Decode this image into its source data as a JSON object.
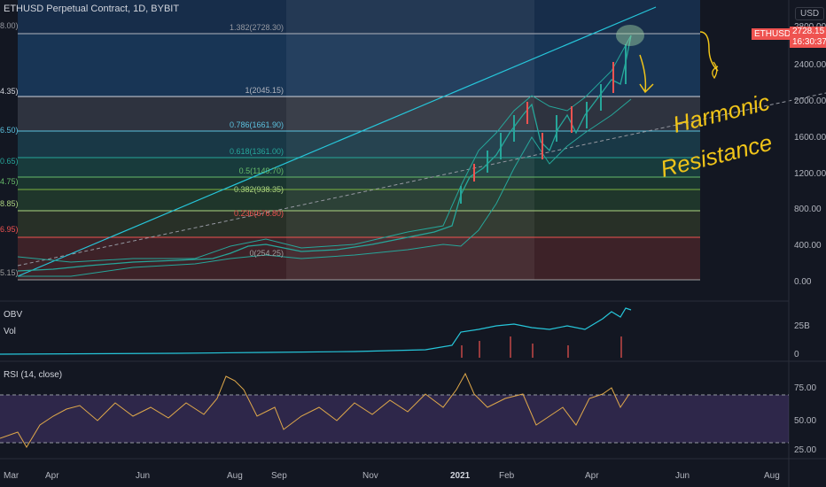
{
  "header": {
    "symbol_title": "ETHUSD Perpetual Contract, 1D, BYBIT",
    "currency_button": "USD",
    "price_flag": "ETHUSD",
    "price_value": "2728.15",
    "countdown": "16:30:37"
  },
  "price_axis": {
    "ticks": [
      "2800.00",
      "2400.00",
      "2000.00",
      "1600.00",
      "1200.00",
      "800.00",
      "400.00",
      "0.00"
    ]
  },
  "fib_levels": [
    {
      "label": "1.382(2728.30)",
      "left": "8.00)",
      "color": "#5b9bd5"
    },
    {
      "label": "1(2045.15)",
      "left": "4.35)",
      "color": "#b2b5be"
    },
    {
      "label": "0.786(1661.90)",
      "left": "6.50)",
      "color": "#5bc0de"
    },
    {
      "label": "0.618(1361.00)",
      "left": "0.65)",
      "color": "#26a69a"
    },
    {
      "label": "0.5(1149.70)",
      "left": "4.75)",
      "color": "#66bb6a"
    },
    {
      "label": "0.382(938.35)",
      "left": "8.85)",
      "color": "#7cb342"
    },
    {
      "label": "0.236(676.80)",
      "left": "6.95)",
      "color": "#ef5350"
    },
    {
      "label": "0(254.25)",
      "left": "5.15)",
      "color": "#9e9e9e"
    }
  ],
  "obv_pane": {
    "label_obv": "OBV",
    "label_vol": "Vol",
    "ticks": [
      "25B",
      "0"
    ]
  },
  "rsi_pane": {
    "label": "RSI (14, close)",
    "ticks": [
      "75.00",
      "50.00",
      "25.00"
    ]
  },
  "time_axis": {
    "labels": [
      "Mar",
      "Apr",
      "Jun",
      "Aug",
      "Sep",
      "Nov",
      "2021",
      "Feb",
      "Apr",
      "Jun",
      "Aug"
    ]
  },
  "annotation": {
    "line1": "Harmonic",
    "line2": "Resistance"
  },
  "colors": {
    "bg": "#131722",
    "candle_up": "#26a69a",
    "candle_down": "#ef5350",
    "rsi": "#e0a94a",
    "obv": "#26c6da",
    "accent_red": "#ef5350"
  }
}
